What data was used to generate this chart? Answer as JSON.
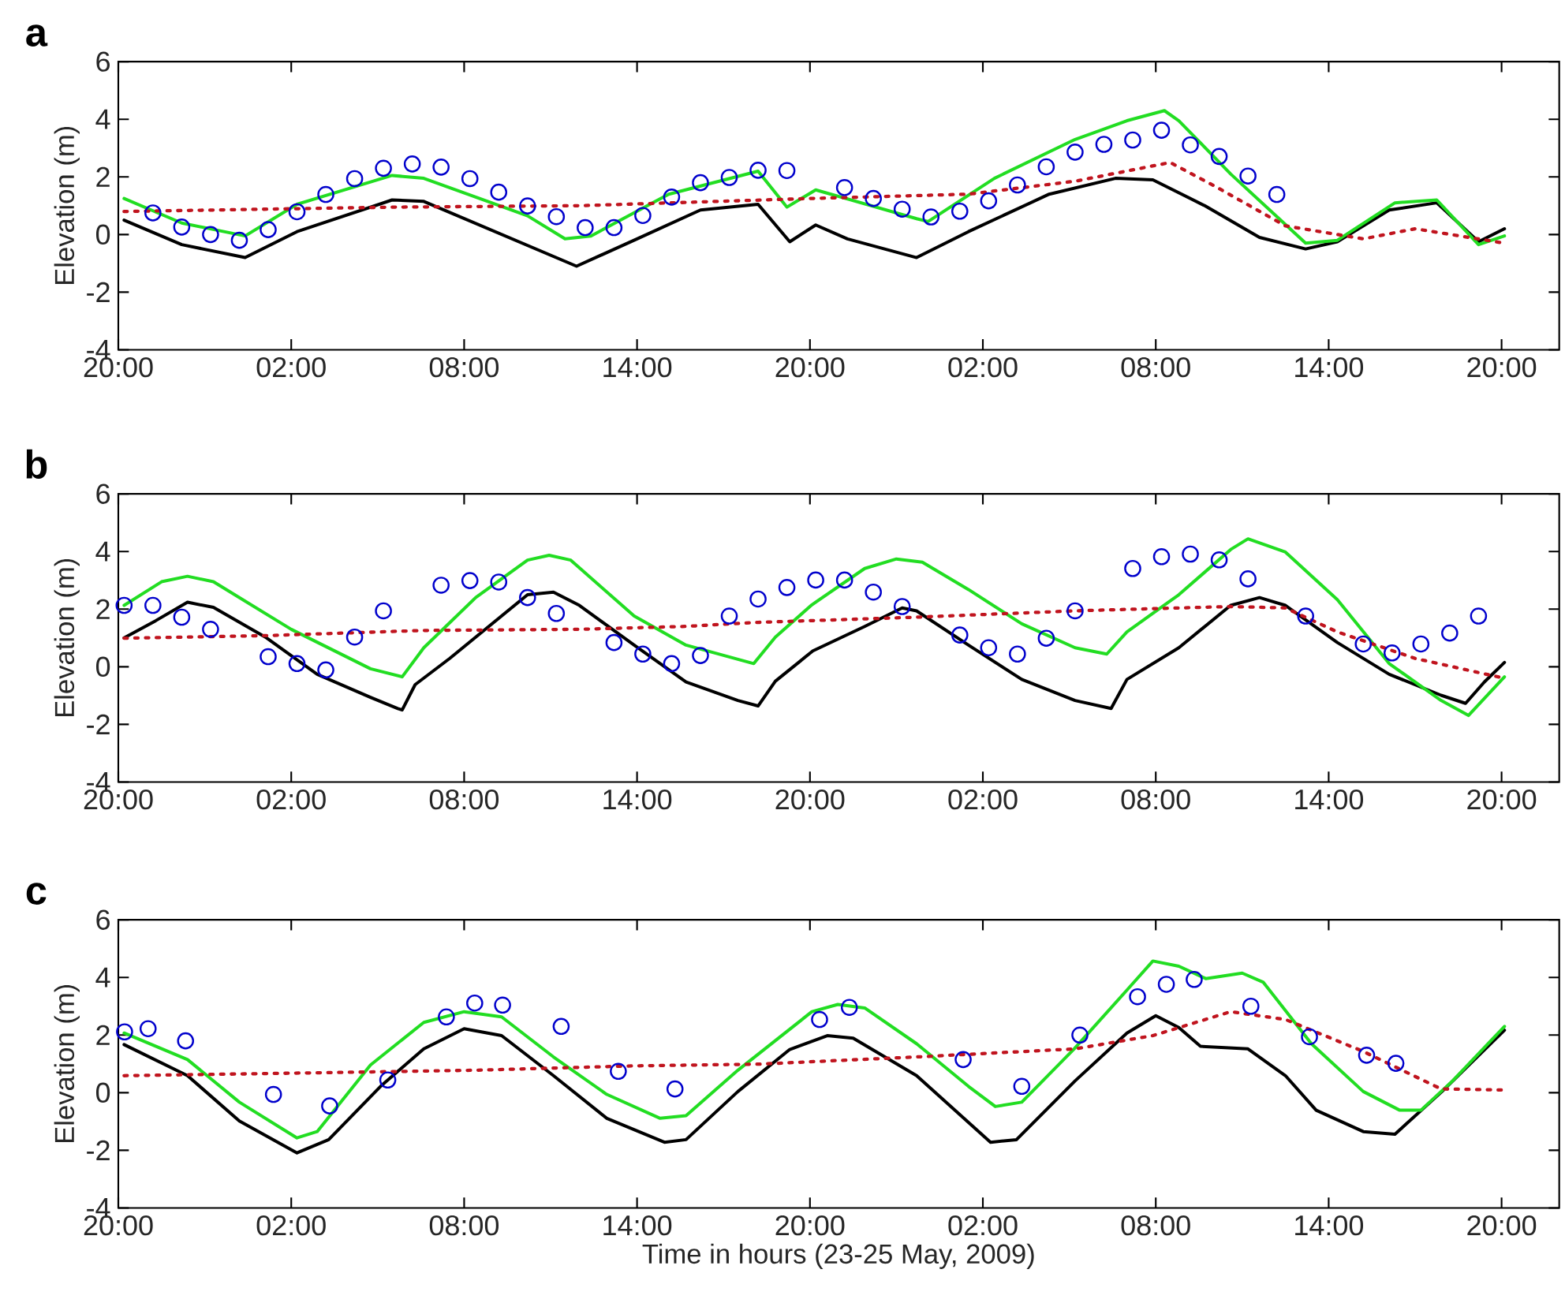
{
  "chart_data": [
    {
      "type": "line",
      "title": "a",
      "ylabel": "Elevation (m)",
      "xlim": [
        "2009-05-23T20:00",
        "2009-05-25T22:00"
      ],
      "ylim": [
        -4,
        6
      ],
      "xticks": [
        {
          "value": "2009-05-23T20:00",
          "label": "20:00"
        },
        {
          "value": "2009-05-24T02:00",
          "label": "02:00"
        },
        {
          "value": "2009-05-24T08:00",
          "label": "08:00"
        },
        {
          "value": "2009-05-24T14:00",
          "label": "14:00"
        },
        {
          "value": "2009-05-24T20:00",
          "label": "20:00"
        },
        {
          "value": "2009-05-25T02:00",
          "label": "02:00"
        },
        {
          "value": "2009-05-25T08:00",
          "label": "08:00"
        },
        {
          "value": "2009-05-25T14:00",
          "label": "14:00"
        },
        {
          "value": "2009-05-25T20:00",
          "label": "20:00"
        }
      ],
      "yticks": [
        -4,
        -2,
        0,
        2,
        4,
        6
      ],
      "series": [
        {
          "type": "line",
          "color": "#000000",
          "line_style": "solid",
          "x": [
            "2009-05-23T20:12",
            "2009-05-23T22:12",
            "2009-05-24T00:24",
            "2009-05-24T02:12",
            "2009-05-24T05:30",
            "2009-05-24T06:36",
            "2009-05-24T11:54",
            "2009-05-24T14:00",
            "2009-05-24T16:12",
            "2009-05-24T18:12",
            "2009-05-24T19:18",
            "2009-05-24T20:12",
            "2009-05-24T21:18",
            "2009-05-24T23:42",
            "2009-05-25T01:30",
            "2009-05-25T04:18",
            "2009-05-25T06:36",
            "2009-05-25T07:54",
            "2009-05-25T09:42",
            "2009-05-25T11:36",
            "2009-05-25T13:12",
            "2009-05-25T14:18",
            "2009-05-25T16:06",
            "2009-05-25T17:45",
            "2009-05-25T19:12",
            "2009-05-25T20:06"
          ],
          "values": [
            0.5,
            -0.35,
            -0.8,
            0.1,
            1.2,
            1.15,
            -1.1,
            -0.15,
            0.85,
            1.05,
            -0.25,
            0.33,
            -0.15,
            -0.8,
            0.1,
            1.4,
            1.95,
            1.9,
            1.0,
            -0.1,
            -0.5,
            -0.25,
            0.85,
            1.1,
            -0.25,
            0.2
          ]
        },
        {
          "type": "line",
          "color": "#22dd22",
          "line_style": "solid",
          "x": [
            "2009-05-23T20:12",
            "2009-05-23T22:12",
            "2009-05-24T00:24",
            "2009-05-24T02:12",
            "2009-05-24T05:30",
            "2009-05-24T06:36",
            "2009-05-24T10:12",
            "2009-05-24T11:30",
            "2009-05-24T12:24",
            "2009-05-24T15:06",
            "2009-05-24T18:12",
            "2009-05-24T19:12",
            "2009-05-24T20:12",
            "2009-05-24T23:42",
            "2009-05-25T00:06",
            "2009-05-25T02:24",
            "2009-05-25T05:12",
            "2009-05-25T07:00",
            "2009-05-25T08:18",
            "2009-05-25T08:48",
            "2009-05-25T10:36",
            "2009-05-25T13:12",
            "2009-05-25T14:18",
            "2009-05-25T16:18",
            "2009-05-25T17:45",
            "2009-05-25T19:12",
            "2009-05-25T20:06"
          ],
          "values": [
            1.25,
            0.4,
            -0.05,
            1.05,
            2.05,
            1.95,
            0.65,
            -0.15,
            -0.05,
            1.4,
            2.2,
            0.95,
            1.55,
            0.55,
            0.45,
            1.95,
            3.3,
            3.95,
            4.3,
            3.95,
            2.1,
            -0.3,
            -0.2,
            1.1,
            1.2,
            -0.35,
            -0.05
          ]
        },
        {
          "type": "line",
          "color": "#c0141e",
          "line_style": "dotted",
          "x": [
            "2009-05-23T20:12",
            "2009-05-24T05:30",
            "2009-05-24T12:00",
            "2009-05-24T20:00",
            "2009-05-25T01:30",
            "2009-05-25T05:12",
            "2009-05-25T08:30",
            "2009-05-25T10:06",
            "2009-05-25T12:30",
            "2009-05-25T15:12",
            "2009-05-25T17:00",
            "2009-05-25T20:06"
          ],
          "values": [
            0.8,
            0.95,
            1.0,
            1.25,
            1.4,
            1.85,
            2.5,
            1.65,
            0.3,
            -0.15,
            0.2,
            -0.3
          ]
        },
        {
          "type": "scatter",
          "color": "#0000cc",
          "marker": "circle",
          "x": [
            "2009-05-23T21:12",
            "2009-05-23T22:12",
            "2009-05-23T23:12",
            "2009-05-24T00:12",
            "2009-05-24T01:12",
            "2009-05-24T02:12",
            "2009-05-24T03:12",
            "2009-05-24T04:12",
            "2009-05-24T05:12",
            "2009-05-24T06:12",
            "2009-05-24T07:12",
            "2009-05-24T08:12",
            "2009-05-24T09:12",
            "2009-05-24T10:12",
            "2009-05-24T11:12",
            "2009-05-24T12:12",
            "2009-05-24T13:12",
            "2009-05-24T14:12",
            "2009-05-24T15:12",
            "2009-05-24T16:12",
            "2009-05-24T17:12",
            "2009-05-24T18:12",
            "2009-05-24T19:12",
            "2009-05-24T21:12",
            "2009-05-24T22:12",
            "2009-05-24T23:12",
            "2009-05-25T00:12",
            "2009-05-25T01:12",
            "2009-05-25T02:12",
            "2009-05-25T03:12",
            "2009-05-25T04:12",
            "2009-05-25T05:12",
            "2009-05-25T06:12",
            "2009-05-25T07:12",
            "2009-05-25T08:12",
            "2009-05-25T09:12",
            "2009-05-25T10:12",
            "2009-05-25T11:12",
            "2009-05-25T12:12"
          ],
          "values": [
            0.75,
            0.26,
            0.0,
            -0.2,
            0.17,
            0.79,
            1.39,
            1.94,
            2.3,
            2.45,
            2.34,
            1.94,
            1.47,
            0.99,
            0.62,
            0.24,
            0.24,
            0.66,
            1.3,
            1.8,
            1.98,
            2.23,
            2.22,
            1.63,
            1.25,
            0.88,
            0.61,
            0.81,
            1.17,
            1.72,
            2.35,
            2.86,
            3.13,
            3.28,
            3.62,
            3.11,
            2.71,
            2.03,
            1.39
          ]
        }
      ]
    },
    {
      "type": "line",
      "title": "b",
      "ylabel": "Elevation (m)",
      "xlim": [
        "2009-05-23T20:00",
        "2009-05-25T22:00"
      ],
      "ylim": [
        -4,
        6
      ],
      "xticks": [
        {
          "value": "2009-05-23T20:00",
          "label": "20:00"
        },
        {
          "value": "2009-05-24T02:00",
          "label": "02:00"
        },
        {
          "value": "2009-05-24T08:00",
          "label": "08:00"
        },
        {
          "value": "2009-05-24T14:00",
          "label": "14:00"
        },
        {
          "value": "2009-05-24T20:00",
          "label": "20:00"
        },
        {
          "value": "2009-05-25T02:00",
          "label": "02:00"
        },
        {
          "value": "2009-05-25T08:00",
          "label": "08:00"
        },
        {
          "value": "2009-05-25T14:00",
          "label": "14:00"
        },
        {
          "value": "2009-05-25T20:00",
          "label": "20:00"
        }
      ],
      "yticks": [
        -4,
        -2,
        0,
        2,
        4,
        6
      ],
      "series": [
        {
          "type": "line",
          "color": "#000000",
          "line_style": "solid",
          "x": [
            "2009-05-23T20:12",
            "2009-05-23T21:18",
            "2009-05-23T22:24",
            "2009-05-23T23:18",
            "2009-05-24T01:06",
            "2009-05-24T02:54",
            "2009-05-24T04:45",
            "2009-05-24T05:42",
            "2009-05-24T05:51",
            "2009-05-24T06:18",
            "2009-05-24T07:30",
            "2009-05-24T10:12",
            "2009-05-24T11:06",
            "2009-05-24T12:00",
            "2009-05-24T13:54",
            "2009-05-24T15:42",
            "2009-05-24T17:30",
            "2009-05-24T18:12",
            "2009-05-24T18:48",
            "2009-05-24T20:06",
            "2009-05-24T21:54",
            "2009-05-24T23:12",
            "2009-05-24T23:42",
            "2009-05-25T01:30",
            "2009-05-25T03:21",
            "2009-05-25T05:12",
            "2009-05-25T06:27",
            "2009-05-25T07:00",
            "2009-05-25T08:48",
            "2009-05-25T10:36",
            "2009-05-25T11:36",
            "2009-05-25T12:30",
            "2009-05-25T14:18",
            "2009-05-25T16:06",
            "2009-05-25T17:54",
            "2009-05-25T18:45",
            "2009-05-25T19:24",
            "2009-05-25T20:06"
          ],
          "values": [
            1.0,
            1.6,
            2.24,
            2.06,
            1.03,
            -0.26,
            -1.06,
            -1.45,
            -1.5,
            -0.62,
            0.29,
            2.5,
            2.59,
            2.13,
            0.75,
            -0.53,
            -1.17,
            -1.36,
            -0.5,
            0.55,
            1.4,
            2.04,
            1.94,
            0.75,
            -0.44,
            -1.17,
            -1.45,
            -0.44,
            0.66,
            2.13,
            2.4,
            2.13,
            0.84,
            -0.26,
            -0.99,
            -1.27,
            -0.53,
            0.15
          ]
        },
        {
          "type": "line",
          "color": "#22dd22",
          "line_style": "solid",
          "x": [
            "2009-05-23T20:12",
            "2009-05-23T21:30",
            "2009-05-23T22:24",
            "2009-05-23T23:18",
            "2009-05-24T02:00",
            "2009-05-24T04:45",
            "2009-05-24T05:51",
            "2009-05-24T06:36",
            "2009-05-24T08:24",
            "2009-05-24T10:12",
            "2009-05-24T10:57",
            "2009-05-24T11:42",
            "2009-05-24T13:54",
            "2009-05-24T15:42",
            "2009-05-24T18:03",
            "2009-05-24T18:48",
            "2009-05-24T20:04",
            "2009-05-24T21:54",
            "2009-05-24T23:00",
            "2009-05-24T23:54",
            "2009-05-25T01:30",
            "2009-05-25T03:21",
            "2009-05-25T05:12",
            "2009-05-25T06:18",
            "2009-05-25T07:00",
            "2009-05-25T08:48",
            "2009-05-25T10:36",
            "2009-05-25T11:12",
            "2009-05-25T12:30",
            "2009-05-25T14:18",
            "2009-05-25T16:06",
            "2009-05-25T17:54",
            "2009-05-25T18:51",
            "2009-05-25T20:06"
          ],
          "values": [
            2.13,
            2.95,
            3.14,
            2.95,
            1.3,
            -0.07,
            -0.35,
            0.66,
            2.4,
            3.7,
            3.87,
            3.7,
            1.76,
            0.75,
            0.11,
            1.03,
            2.15,
            3.41,
            3.74,
            3.63,
            2.68,
            1.49,
            0.66,
            0.44,
            1.21,
            2.5,
            4.07,
            4.44,
            3.98,
            2.33,
            0.11,
            -1.17,
            -1.69,
            -0.35
          ]
        },
        {
          "type": "line",
          "color": "#c0141e",
          "line_style": "dotted",
          "x": [
            "2009-05-23T20:12",
            "2009-05-24T01:06",
            "2009-05-24T06:36",
            "2009-05-24T12:00",
            "2009-05-24T15:42",
            "2009-05-24T18:12",
            "2009-05-24T23:42",
            "2009-05-25T05:12",
            "2009-05-25T10:36",
            "2009-05-25T12:30",
            "2009-05-25T14:18",
            "2009-05-25T17:00",
            "2009-05-25T20:06"
          ],
          "values": [
            0.99,
            1.08,
            1.26,
            1.3,
            1.4,
            1.54,
            1.72,
            1.94,
            2.09,
            2.04,
            1.21,
            0.29,
            -0.4
          ]
        },
        {
          "type": "scatter",
          "color": "#0000cc",
          "marker": "circle",
          "x": [
            "2009-05-23T20:12",
            "2009-05-23T21:12",
            "2009-05-23T22:12",
            "2009-05-23T23:12",
            "2009-05-24T01:12",
            "2009-05-24T02:12",
            "2009-05-24T03:12",
            "2009-05-24T04:12",
            "2009-05-24T05:12",
            "2009-05-24T07:12",
            "2009-05-24T08:12",
            "2009-05-24T09:12",
            "2009-05-24T10:12",
            "2009-05-24T11:12",
            "2009-05-24T13:12",
            "2009-05-24T14:12",
            "2009-05-24T15:12",
            "2009-05-24T16:12",
            "2009-05-24T17:12",
            "2009-05-24T18:12",
            "2009-05-24T19:12",
            "2009-05-24T20:12",
            "2009-05-24T21:12",
            "2009-05-24T22:12",
            "2009-05-24T23:12",
            "2009-05-25T01:12",
            "2009-05-25T02:12",
            "2009-05-25T03:12",
            "2009-05-25T04:12",
            "2009-05-25T05:12",
            "2009-05-25T07:12",
            "2009-05-25T08:12",
            "2009-05-25T09:12",
            "2009-05-25T10:12",
            "2009-05-25T11:12",
            "2009-05-25T13:12",
            "2009-05-25T15:12",
            "2009-05-25T16:12",
            "2009-05-25T17:12",
            "2009-05-25T18:12",
            "2009-05-25T19:12"
          ],
          "values": [
            2.13,
            2.13,
            1.72,
            1.3,
            0.35,
            0.11,
            -0.11,
            1.03,
            1.94,
            2.83,
            2.99,
            2.94,
            2.4,
            1.85,
            0.84,
            0.44,
            0.11,
            0.39,
            1.76,
            2.35,
            2.75,
            3.01,
            3.01,
            2.59,
            2.09,
            1.1,
            0.66,
            0.44,
            0.99,
            1.94,
            3.41,
            3.82,
            3.91,
            3.71,
            3.05,
            1.76,
            0.79,
            0.48,
            0.79,
            1.17,
            1.76
          ]
        }
      ]
    },
    {
      "type": "line",
      "title": "c",
      "ylabel": "Elevation (m)",
      "xlabel": "Time in hours (23-25 May, 2009)",
      "xlim": [
        "2009-05-23T20:00",
        "2009-05-25T22:00"
      ],
      "ylim": [
        -4,
        6
      ],
      "xticks": [
        {
          "value": "2009-05-23T20:00",
          "label": "20:00"
        },
        {
          "value": "2009-05-24T02:00",
          "label": "02:00"
        },
        {
          "value": "2009-05-24T08:00",
          "label": "08:00"
        },
        {
          "value": "2009-05-24T14:00",
          "label": "14:00"
        },
        {
          "value": "2009-05-24T20:00",
          "label": "20:00"
        },
        {
          "value": "2009-05-25T02:00",
          "label": "02:00"
        },
        {
          "value": "2009-05-25T08:00",
          "label": "08:00"
        },
        {
          "value": "2009-05-25T14:00",
          "label": "14:00"
        },
        {
          "value": "2009-05-25T20:00",
          "label": "20:00"
        }
      ],
      "yticks": [
        -4,
        -2,
        0,
        2,
        4,
        6
      ],
      "series": [
        {
          "type": "line",
          "color": "#000000",
          "line_style": "solid",
          "x": [
            "2009-05-23T20:12",
            "2009-05-23T22:24",
            "2009-05-24T00:12",
            "2009-05-24T02:12",
            "2009-05-24T03:18",
            "2009-05-24T05:06",
            "2009-05-24T06:36",
            "2009-05-24T08:00",
            "2009-05-24T09:18",
            "2009-05-24T11:06",
            "2009-05-24T12:57",
            "2009-05-24T14:57",
            "2009-05-24T15:42",
            "2009-05-24T17:30",
            "2009-05-24T19:18",
            "2009-05-24T20:36",
            "2009-05-24T21:30",
            "2009-05-24T23:42",
            "2009-05-25T02:16",
            "2009-05-25T03:10",
            "2009-05-25T05:12",
            "2009-05-25T07:00",
            "2009-05-25T08:00",
            "2009-05-25T08:48",
            "2009-05-25T09:33",
            "2009-05-25T11:12",
            "2009-05-25T12:30",
            "2009-05-25T13:34",
            "2009-05-25T15:12",
            "2009-05-25T16:18",
            "2009-05-25T17:56",
            "2009-05-25T20:06"
          ],
          "values": [
            1.67,
            0.59,
            -0.98,
            -2.09,
            -1.63,
            0.22,
            1.52,
            2.22,
            1.98,
            0.59,
            -0.89,
            -1.72,
            -1.63,
            0.04,
            1.5,
            1.98,
            1.89,
            0.59,
            -1.72,
            -1.63,
            0.41,
            2.07,
            2.67,
            2.26,
            1.61,
            1.52,
            0.59,
            -0.61,
            -1.35,
            -1.44,
            0.04,
            2.17
          ]
        },
        {
          "type": "line",
          "color": "#22dd22",
          "line_style": "solid",
          "x": [
            "2009-05-23T20:12",
            "2009-05-23T22:24",
            "2009-05-24T00:12",
            "2009-05-24T02:12",
            "2009-05-24T02:54",
            "2009-05-24T04:45",
            "2009-05-24T06:36",
            "2009-05-24T08:00",
            "2009-05-24T09:18",
            "2009-05-24T11:06",
            "2009-05-24T12:57",
            "2009-05-24T14:48",
            "2009-05-24T15:42",
            "2009-05-24T17:30",
            "2009-05-24T20:04",
            "2009-05-24T20:58",
            "2009-05-24T21:54",
            "2009-05-24T23:42",
            "2009-05-25T01:30",
            "2009-05-25T02:26",
            "2009-05-25T03:21",
            "2009-05-25T05:10",
            "2009-05-25T07:00",
            "2009-05-25T07:54",
            "2009-05-25T08:48",
            "2009-05-25T09:44",
            "2009-05-25T11:00",
            "2009-05-25T11:44",
            "2009-05-25T13:24",
            "2009-05-25T15:12",
            "2009-05-25T16:28",
            "2009-05-25T17:12",
            "2009-05-25T18:18",
            "2009-05-25T20:06"
          ],
          "values": [
            2.07,
            1.15,
            -0.33,
            -1.57,
            -1.35,
            0.96,
            2.44,
            2.81,
            2.63,
            1.24,
            -0.06,
            -0.89,
            -0.8,
            0.78,
            2.81,
            3.06,
            2.94,
            1.7,
            0.22,
            -0.48,
            -0.33,
            1.52,
            3.56,
            4.57,
            4.39,
            3.96,
            4.15,
            3.83,
            1.7,
            0.04,
            -0.61,
            -0.61,
            0.41,
            2.3
          ]
        },
        {
          "type": "line",
          "color": "#c0141e",
          "line_style": "dotted",
          "x": [
            "2009-05-23T20:12",
            "2009-05-24T02:54",
            "2009-05-24T08:24",
            "2009-05-24T13:54",
            "2009-05-24T18:12",
            "2009-05-24T23:42",
            "2009-05-25T05:12",
            "2009-05-25T07:54",
            "2009-05-25T10:36",
            "2009-05-25T12:30",
            "2009-05-25T15:12",
            "2009-05-25T17:54",
            "2009-05-25T20:06"
          ],
          "values": [
            0.59,
            0.69,
            0.78,
            0.93,
            0.99,
            1.24,
            1.52,
            1.98,
            2.81,
            2.54,
            1.43,
            0.13,
            0.09
          ]
        },
        {
          "type": "scatter",
          "color": "#0000cc",
          "marker": "circle",
          "x": [
            "2009-05-23T20:13",
            "2009-05-23T21:02",
            "2009-05-23T22:20",
            "2009-05-24T01:23",
            "2009-05-24T03:20",
            "2009-05-24T05:21",
            "2009-05-24T07:23",
            "2009-05-24T08:22",
            "2009-05-24T09:20",
            "2009-05-24T11:22",
            "2009-05-24T13:21",
            "2009-05-24T15:19",
            "2009-05-24T20:20",
            "2009-05-24T21:22",
            "2009-05-25T01:19",
            "2009-05-25T03:21",
            "2009-05-25T05:22",
            "2009-05-25T07:22",
            "2009-05-25T08:22",
            "2009-05-25T09:20",
            "2009-05-25T11:18",
            "2009-05-25T13:20",
            "2009-05-25T15:19",
            "2009-05-25T16:20"
          ],
          "values": [
            2.11,
            2.22,
            1.8,
            -0.06,
            -0.46,
            0.44,
            2.63,
            3.11,
            3.04,
            2.3,
            0.74,
            0.13,
            2.54,
            2.96,
            1.15,
            0.22,
            2.0,
            3.33,
            3.76,
            3.93,
            3.0,
            1.94,
            1.3,
            1.02
          ]
        }
      ]
    }
  ]
}
